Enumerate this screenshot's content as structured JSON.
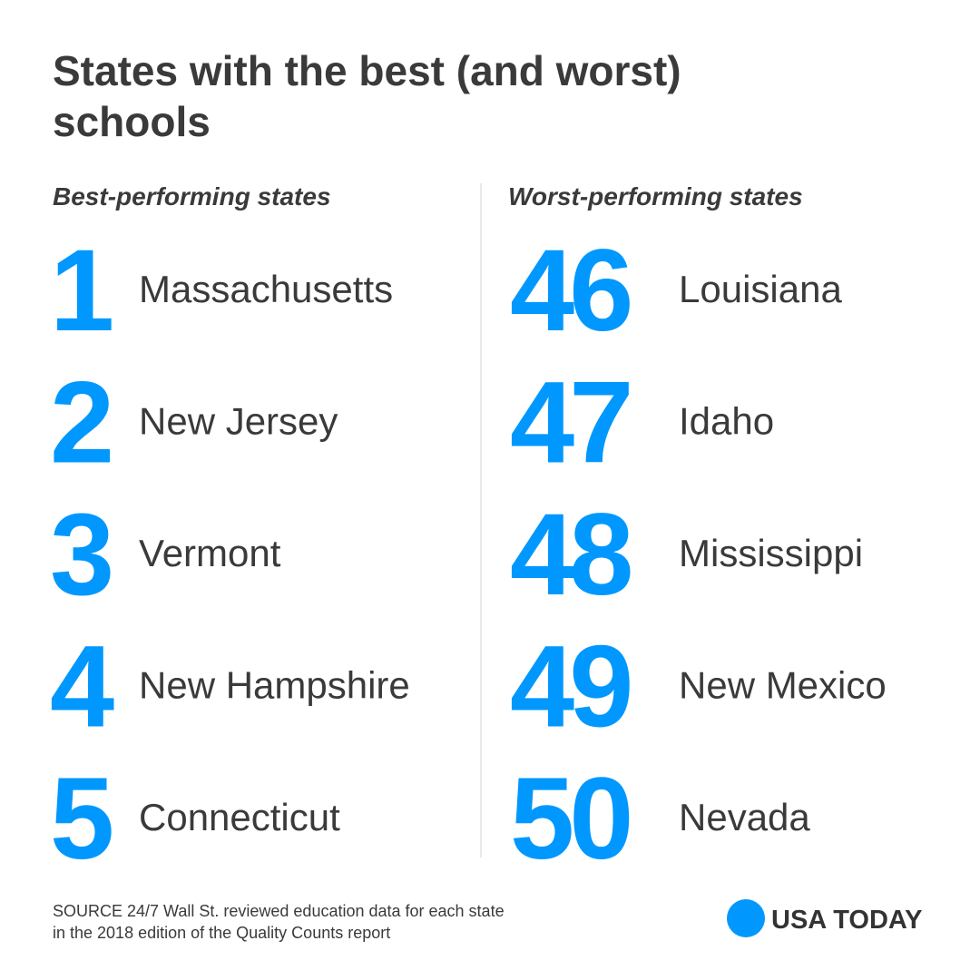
{
  "header": {
    "title": [
      "States with the best (and worst)",
      "schools"
    ]
  },
  "columns": [
    {
      "heading": "Best-performing states",
      "items": [
        {
          "rank": 1,
          "state": "Massachusetts"
        },
        {
          "rank": 2,
          "state": "New Jersey"
        },
        {
          "rank": 3,
          "state": "Vermont"
        },
        {
          "rank": 4,
          "state": "New Hampshire"
        },
        {
          "rank": 5,
          "state": "Connecticut"
        }
      ]
    },
    {
      "heading": "Worst-performing states",
      "items": [
        {
          "rank": 46,
          "state": "Louisiana"
        },
        {
          "rank": 47,
          "state": "Idaho"
        },
        {
          "rank": 48,
          "state": "Mississippi"
        },
        {
          "rank": 49,
          "state": "New Mexico"
        },
        {
          "rank": 50,
          "state": "Nevada"
        }
      ]
    }
  ],
  "footer": {
    "source": [
      "SOURCE 24/7 Wall St. reviewed education data for each state",
      "in the 2018 edition of the Quality Counts report"
    ],
    "logo": "USA TODAY"
  }
}
